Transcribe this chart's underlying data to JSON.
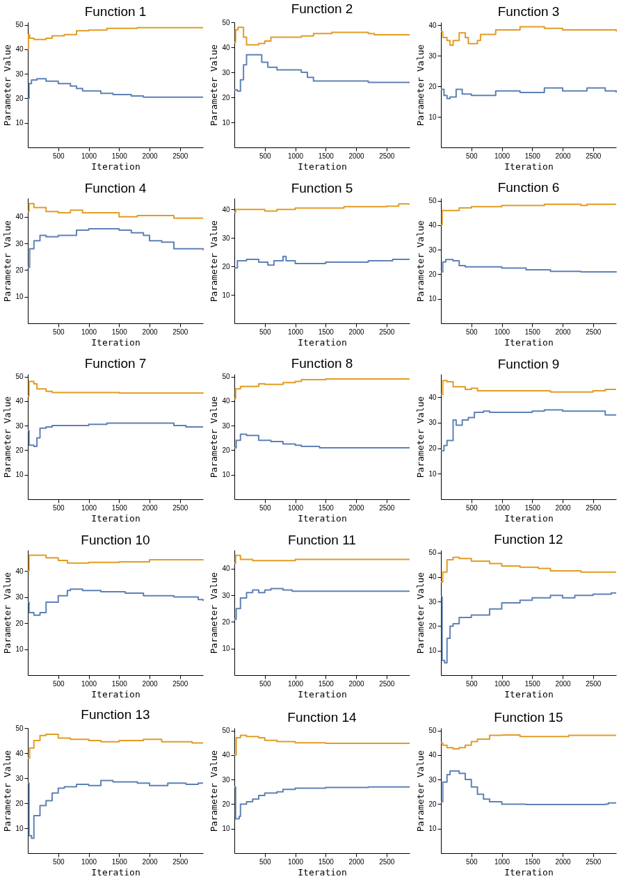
{
  "chart_data": [
    {
      "type": "step",
      "title": "Function 1",
      "xlabel": "Iteration",
      "ylabel": "Parameter Value",
      "xlim": [
        0,
        2880
      ],
      "ylim": [
        0,
        51
      ],
      "xticks": [
        500,
        1000,
        1500,
        2000,
        2500
      ],
      "yticks": [
        10,
        20,
        30,
        40,
        50
      ],
      "series": [
        {
          "color": "#e19c24",
          "x": [
            0,
            10,
            30,
            100,
            300,
            400,
            600,
            800,
            1000,
            1300,
            1800,
            2880
          ],
          "values": [
            40,
            46,
            44.5,
            44,
            44.5,
            45.5,
            46,
            47.5,
            47.8,
            48.5,
            48.8,
            48.8
          ]
        },
        {
          "color": "#5e81b5",
          "x": [
            0,
            20,
            60,
            150,
            300,
            500,
            700,
            800,
            900,
            1200,
            1400,
            1700,
            1900,
            2880
          ],
          "values": [
            20,
            26,
            27.5,
            28,
            27,
            26,
            25,
            24,
            23,
            22,
            21.5,
            21,
            20.5,
            20.5
          ]
        }
      ]
    },
    {
      "type": "step",
      "title": "Function 2",
      "xlabel": "Iteration",
      "ylabel": "Parameter Value",
      "xlim": [
        0,
        2880
      ],
      "ylim": [
        0,
        50
      ],
      "xticks": [
        500,
        1000,
        1500,
        2000,
        2500
      ],
      "yticks": [
        10,
        20,
        30,
        40,
        50
      ],
      "series": [
        {
          "color": "#e19c24",
          "x": [
            0,
            20,
            60,
            150,
            200,
            400,
            500,
            600,
            1100,
            1300,
            1600,
            2200,
            2300,
            2880
          ],
          "values": [
            42,
            47,
            48,
            44,
            41,
            41.5,
            42.5,
            44,
            44.5,
            45.5,
            46,
            45.5,
            45,
            45
          ]
        },
        {
          "color": "#5e81b5",
          "x": [
            0,
            50,
            100,
            150,
            200,
            350,
            450,
            550,
            700,
            1100,
            1200,
            1300,
            1500,
            2200,
            2880
          ],
          "values": [
            23,
            22.5,
            27,
            33,
            37,
            37,
            34,
            32,
            31,
            30,
            28,
            26.5,
            26.5,
            26,
            26
          ]
        }
      ]
    },
    {
      "type": "step",
      "title": "Function 3",
      "xlabel": "Iteration",
      "ylabel": "Parameter Value",
      "xlim": [
        0,
        2880
      ],
      "ylim": [
        0,
        41
      ],
      "xticks": [
        500,
        1000,
        1500,
        2000,
        2500
      ],
      "yticks": [
        10,
        20,
        30,
        40
      ],
      "series": [
        {
          "color": "#e19c24",
          "x": [
            0,
            30,
            100,
            150,
            200,
            300,
            400,
            450,
            600,
            650,
            900,
            1100,
            1300,
            1700,
            2000,
            2880
          ],
          "values": [
            38,
            36,
            35,
            33.5,
            35,
            37.5,
            36,
            34,
            35,
            37,
            38.5,
            38.5,
            39.5,
            39,
            38.5,
            38
          ]
        },
        {
          "color": "#5e81b5",
          "x": [
            0,
            50,
            100,
            150,
            250,
            350,
            500,
            700,
            900,
            1300,
            1700,
            2000,
            2400,
            2700,
            2880
          ],
          "values": [
            19,
            17,
            16,
            16.5,
            19,
            17.5,
            17,
            17,
            18.5,
            18,
            19.5,
            18.5,
            19.5,
            18.5,
            18
          ]
        }
      ]
    },
    {
      "type": "step",
      "title": "Function 4",
      "xlabel": "Iteration",
      "ylabel": "Parameter Value",
      "xlim": [
        0,
        2880
      ],
      "ylim": [
        0,
        47
      ],
      "xticks": [
        500,
        1000,
        1500,
        2000,
        2500
      ],
      "yticks": [
        10,
        20,
        30,
        40
      ],
      "series": [
        {
          "color": "#e19c24",
          "x": [
            0,
            20,
            100,
            300,
            500,
            700,
            900,
            1500,
            1800,
            2000,
            2400,
            2880
          ],
          "values": [
            42,
            45,
            43.5,
            42,
            41.5,
            42.5,
            41.5,
            40,
            40.5,
            40.5,
            39.5,
            39.5
          ]
        },
        {
          "color": "#5e81b5",
          "x": [
            0,
            30,
            100,
            200,
            300,
            500,
            800,
            1000,
            1500,
            1700,
            1900,
            2000,
            2200,
            2400,
            2880
          ],
          "values": [
            21,
            28,
            31,
            33,
            32.5,
            33,
            35,
            35.5,
            35,
            34,
            33,
            31,
            30.5,
            28,
            27.5
          ]
        }
      ]
    },
    {
      "type": "step",
      "title": "Function 5",
      "xlabel": "Iteration",
      "ylabel": "Parameter Value",
      "xlim": [
        0,
        2880
      ],
      "ylim": [
        0,
        44
      ],
      "xticks": [
        500,
        1000,
        1500,
        2000,
        2500
      ],
      "yticks": [
        10,
        20,
        30,
        40
      ],
      "series": [
        {
          "color": "#e19c24",
          "x": [
            0,
            20,
            200,
            500,
            700,
            1000,
            1800,
            2500,
            2700,
            2880
          ],
          "values": [
            39,
            40,
            40,
            39.5,
            40,
            40.5,
            41,
            41.2,
            42,
            42
          ]
        },
        {
          "color": "#5e81b5",
          "x": [
            0,
            50,
            200,
            400,
            550,
            650,
            800,
            850,
            1000,
            1500,
            2200,
            2600,
            2880
          ],
          "values": [
            19.5,
            22,
            22.5,
            21.5,
            20.5,
            22,
            23.5,
            22,
            21,
            21.5,
            22,
            22.5,
            22.5
          ]
        }
      ]
    },
    {
      "type": "step",
      "title": "Function 6",
      "xlabel": "Iteration",
      "ylabel": "Parameter Value",
      "xlim": [
        0,
        2880
      ],
      "ylim": [
        0,
        51
      ],
      "xticks": [
        500,
        1000,
        1500,
        2000,
        2500
      ],
      "yticks": [
        10,
        20,
        30,
        40,
        50
      ],
      "series": [
        {
          "color": "#e19c24",
          "x": [
            0,
            20,
            200,
            300,
            500,
            1000,
            1700,
            2200,
            2300,
            2400,
            2880
          ],
          "values": [
            40,
            46,
            46,
            47,
            47.5,
            48,
            48.5,
            48.5,
            48,
            48.5,
            48.5
          ]
        },
        {
          "color": "#5e81b5",
          "x": [
            0,
            30,
            80,
            200,
            300,
            400,
            800,
            1000,
            1400,
            1800,
            2300,
            2880
          ],
          "values": [
            21,
            25,
            26,
            25.5,
            23.5,
            23,
            23,
            22.5,
            21.8,
            21.2,
            21,
            21.2
          ]
        }
      ]
    },
    {
      "type": "step",
      "title": "Function 7",
      "xlabel": "Iteration",
      "ylabel": "Parameter Value",
      "xlim": [
        0,
        2880
      ],
      "ylim": [
        0,
        51
      ],
      "xticks": [
        500,
        1000,
        1500,
        2000,
        2500
      ],
      "yticks": [
        10,
        20,
        30,
        40,
        50
      ],
      "series": [
        {
          "color": "#e19c24",
          "x": [
            0,
            20,
            100,
            150,
            300,
            400,
            1000,
            1500,
            2880
          ],
          "values": [
            42,
            48,
            47,
            45,
            44,
            43.5,
            43.5,
            43.3,
            43.5
          ]
        },
        {
          "color": "#5e81b5",
          "x": [
            0,
            20,
            100,
            150,
            200,
            300,
            400,
            1000,
            1300,
            2300,
            2400,
            2600,
            2880
          ],
          "values": [
            28,
            22,
            21.5,
            25,
            29,
            29.5,
            30,
            30.5,
            31,
            31,
            30,
            29.5,
            29.5
          ]
        }
      ]
    },
    {
      "type": "step",
      "title": "Function 8",
      "xlabel": "Iteration",
      "ylabel": "Parameter Value",
      "xlim": [
        0,
        2880
      ],
      "ylim": [
        0,
        51
      ],
      "xticks": [
        500,
        1000,
        1500,
        2000,
        2500
      ],
      "yticks": [
        10,
        20,
        30,
        40,
        50
      ],
      "series": [
        {
          "color": "#e19c24",
          "x": [
            0,
            20,
            100,
            400,
            500,
            800,
            1000,
            1100,
            1500,
            2880
          ],
          "values": [
            41,
            45,
            46,
            47,
            46.8,
            47.5,
            48,
            48.7,
            49,
            49
          ]
        },
        {
          "color": "#5e81b5",
          "x": [
            0,
            30,
            100,
            200,
            400,
            600,
            800,
            1000,
            1100,
            1400,
            2880
          ],
          "values": [
            21,
            24,
            26.5,
            26,
            24,
            23.5,
            22.5,
            22,
            21.5,
            21,
            21
          ]
        }
      ]
    },
    {
      "type": "step",
      "title": "Function 9",
      "xlabel": "Iteration",
      "ylabel": "Parameter Value",
      "xlim": [
        0,
        2880
      ],
      "ylim": [
        0,
        49
      ],
      "xticks": [
        500,
        1000,
        1500,
        2000,
        2500
      ],
      "yticks": [
        10,
        20,
        30,
        40
      ],
      "series": [
        {
          "color": "#e19c24",
          "x": [
            0,
            30,
            100,
            200,
            300,
            400,
            500,
            600,
            800,
            1500,
            1800,
            2500,
            2700,
            2880
          ],
          "values": [
            41,
            46.5,
            46,
            44,
            44,
            43,
            43.5,
            42.5,
            42.5,
            42.5,
            42,
            42.5,
            43,
            43
          ]
        },
        {
          "color": "#5e81b5",
          "x": [
            0,
            50,
            100,
            200,
            250,
            350,
            450,
            550,
            700,
            800,
            1000,
            1500,
            1700,
            2000,
            2600,
            2700,
            2880
          ],
          "values": [
            19,
            21,
            23,
            31,
            29,
            31,
            32,
            34,
            34.5,
            34,
            34,
            34.5,
            35,
            34.5,
            34.5,
            33,
            33
          ]
        }
      ]
    },
    {
      "type": "step",
      "title": "Function 10",
      "xlabel": "Iteration",
      "ylabel": "Parameter Value",
      "xlim": [
        0,
        2880
      ],
      "ylim": [
        0,
        48
      ],
      "xticks": [
        500,
        1000,
        1500,
        2000,
        2500
      ],
      "yticks": [
        10,
        20,
        30,
        40
      ],
      "series": [
        {
          "color": "#e19c24",
          "x": [
            0,
            20,
            200,
            300,
            500,
            650,
            1000,
            1500,
            2000,
            2880
          ],
          "values": [
            40,
            46,
            46,
            45,
            44,
            43,
            43.3,
            43.5,
            44.3,
            44.5
          ]
        },
        {
          "color": "#5e81b5",
          "x": [
            0,
            20,
            100,
            200,
            300,
            500,
            650,
            700,
            900,
            1200,
            1600,
            1900,
            2400,
            2800,
            2880
          ],
          "values": [
            28,
            24,
            23,
            24,
            28,
            30.5,
            32.5,
            33,
            32.5,
            32,
            31.5,
            30.5,
            30,
            29,
            28.5
          ]
        }
      ]
    },
    {
      "type": "step",
      "title": "Function 11",
      "xlabel": "Iteration",
      "ylabel": "Parameter Value",
      "xlim": [
        0,
        2880
      ],
      "ylim": [
        0,
        47
      ],
      "xticks": [
        500,
        1000,
        1500,
        2000,
        2500
      ],
      "yticks": [
        10,
        20,
        30,
        40
      ],
      "series": [
        {
          "color": "#e19c24",
          "x": [
            0,
            20,
            100,
            300,
            500,
            700,
            1000,
            2880
          ],
          "values": [
            42,
            45,
            43.5,
            43,
            43,
            43,
            43.5,
            43.5
          ]
        },
        {
          "color": "#5e81b5",
          "x": [
            0,
            30,
            100,
            200,
            300,
            400,
            500,
            600,
            800,
            950,
            2880
          ],
          "values": [
            21,
            25,
            29,
            31,
            32,
            31,
            32,
            32.5,
            32,
            31.5,
            31.5
          ]
        }
      ]
    },
    {
      "type": "step",
      "title": "Function 12",
      "xlabel": "Iteration",
      "ylabel": "Parameter Value",
      "xlim": [
        0,
        2880
      ],
      "ylim": [
        0,
        51
      ],
      "xticks": [
        500,
        1000,
        1500,
        2000,
        2500
      ],
      "yticks": [
        10,
        20,
        30,
        40,
        50
      ],
      "series": [
        {
          "color": "#e19c24",
          "x": [
            0,
            30,
            100,
            200,
            300,
            500,
            700,
            800,
            1000,
            1300,
            1600,
            1800,
            2300,
            2880
          ],
          "values": [
            38,
            42,
            47,
            48,
            47.5,
            46.5,
            46.5,
            45.5,
            44.5,
            44,
            43.5,
            42.5,
            42,
            42
          ]
        },
        {
          "color": "#5e81b5",
          "x": [
            0,
            20,
            60,
            100,
            150,
            200,
            300,
            500,
            700,
            800,
            1000,
            1300,
            1500,
            1800,
            2000,
            2200,
            2500,
            2800,
            2880
          ],
          "values": [
            32,
            6,
            5,
            15,
            20,
            21,
            23.5,
            24.5,
            24.5,
            27,
            29.5,
            30.5,
            31.5,
            32.5,
            31.5,
            32.5,
            33,
            33.5,
            33.5
          ]
        }
      ]
    },
    {
      "type": "step",
      "title": "Function 13",
      "xlabel": "Iteration",
      "ylabel": "Parameter Value",
      "xlim": [
        0,
        2880
      ],
      "ylim": [
        0,
        50
      ],
      "xticks": [
        500,
        1000,
        1500,
        2000,
        2500
      ],
      "yticks": [
        10,
        20,
        30,
        40,
        50
      ],
      "series": [
        {
          "color": "#e19c24",
          "x": [
            0,
            30,
            100,
            200,
            300,
            500,
            700,
            1000,
            1200,
            1500,
            1900,
            2200,
            2700,
            2880
          ],
          "values": [
            38,
            42,
            45,
            47,
            47.5,
            46,
            45.5,
            45,
            44.5,
            45,
            45.5,
            44.5,
            44,
            44
          ]
        },
        {
          "color": "#5e81b5",
          "x": [
            0,
            20,
            60,
            100,
            200,
            300,
            400,
            500,
            600,
            800,
            1000,
            1200,
            1400,
            1800,
            2000,
            2300,
            2600,
            2800,
            2880
          ],
          "values": [
            28,
            7,
            6,
            15,
            19,
            21,
            24,
            26,
            26.5,
            27.5,
            27,
            29,
            28.5,
            28,
            27,
            28,
            27.5,
            28,
            28
          ]
        }
      ]
    },
    {
      "type": "step",
      "title": "Function 14",
      "xlabel": "Iteration",
      "ylabel": "Parameter Value",
      "xlim": [
        0,
        2880
      ],
      "ylim": [
        0,
        51
      ],
      "xticks": [
        500,
        1000,
        1500,
        2000,
        2500
      ],
      "yticks": [
        10,
        20,
        30,
        40,
        50
      ],
      "series": [
        {
          "color": "#e19c24",
          "x": [
            0,
            30,
            100,
            200,
            400,
            500,
            700,
            1000,
            1500,
            2880
          ],
          "values": [
            40,
            47,
            48,
            47.5,
            47,
            46,
            45.5,
            45,
            44.8,
            44.8
          ]
        },
        {
          "color": "#5e81b5",
          "x": [
            0,
            20,
            80,
            100,
            200,
            300,
            400,
            500,
            700,
            800,
            1000,
            1500,
            2200,
            2880
          ],
          "values": [
            27,
            14,
            15,
            20,
            21,
            22,
            23.5,
            24.5,
            25,
            26,
            26.5,
            26.8,
            27,
            27
          ]
        }
      ]
    },
    {
      "type": "step",
      "title": "Function 15",
      "xlabel": "Iteration",
      "ylabel": "Parameter Value",
      "xlim": [
        0,
        2880
      ],
      "ylim": [
        0,
        51
      ],
      "xticks": [
        500,
        1000,
        1500,
        2000,
        2500
      ],
      "yticks": [
        10,
        20,
        30,
        40,
        50
      ],
      "series": [
        {
          "color": "#e19c24",
          "x": [
            0,
            30,
            100,
            200,
            300,
            400,
            500,
            600,
            800,
            1000,
            1300,
            2100,
            2880
          ],
          "values": [
            45,
            44,
            43,
            42.5,
            43,
            44,
            45.5,
            46.5,
            48,
            48.2,
            47.5,
            48,
            48
          ]
        },
        {
          "color": "#5e81b5",
          "x": [
            0,
            30,
            100,
            150,
            300,
            400,
            500,
            600,
            700,
            800,
            1000,
            1400,
            2700,
            2750,
            2880
          ],
          "values": [
            21,
            29,
            32,
            33.5,
            32.5,
            30,
            27,
            24,
            22,
            21,
            20,
            19.8,
            20,
            20.5,
            20.5
          ]
        }
      ]
    }
  ]
}
